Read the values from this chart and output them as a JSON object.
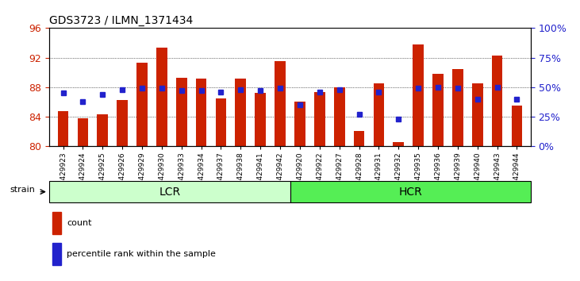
{
  "title": "GDS3723 / ILMN_1371434",
  "samples": [
    "GSM429923",
    "GSM429924",
    "GSM429925",
    "GSM429926",
    "GSM429929",
    "GSM429930",
    "GSM429933",
    "GSM429934",
    "GSM429937",
    "GSM429938",
    "GSM429941",
    "GSM429942",
    "GSM429920",
    "GSM429922",
    "GSM429927",
    "GSM429928",
    "GSM429931",
    "GSM429932",
    "GSM429935",
    "GSM429936",
    "GSM429939",
    "GSM429940",
    "GSM429943",
    "GSM429944"
  ],
  "counts": [
    84.7,
    83.8,
    84.3,
    86.2,
    91.3,
    93.3,
    89.3,
    89.2,
    86.5,
    89.2,
    87.2,
    91.5,
    86.0,
    87.3,
    88.0,
    82.0,
    88.5,
    80.5,
    93.8,
    89.8,
    90.5,
    88.5,
    92.3,
    85.5
  ],
  "percentile_ranks": [
    45,
    38,
    44,
    48,
    49,
    49,
    47,
    47,
    46,
    48,
    47,
    49,
    35,
    46,
    48,
    27,
    46,
    23,
    49,
    50,
    49,
    40,
    50,
    40
  ],
  "group_labels": [
    "LCR",
    "HCR"
  ],
  "group_counts": [
    12,
    12
  ],
  "ylim": [
    80,
    96
  ],
  "yticks_left": [
    80,
    84,
    88,
    92,
    96
  ],
  "yticks_right": [
    0,
    25,
    50,
    75,
    100
  ],
  "bar_color": "#cc2200",
  "marker_color": "#2222cc",
  "lcr_color": "#ccffcc",
  "hcr_color": "#55ee55",
  "bg_color": "#ffffff"
}
